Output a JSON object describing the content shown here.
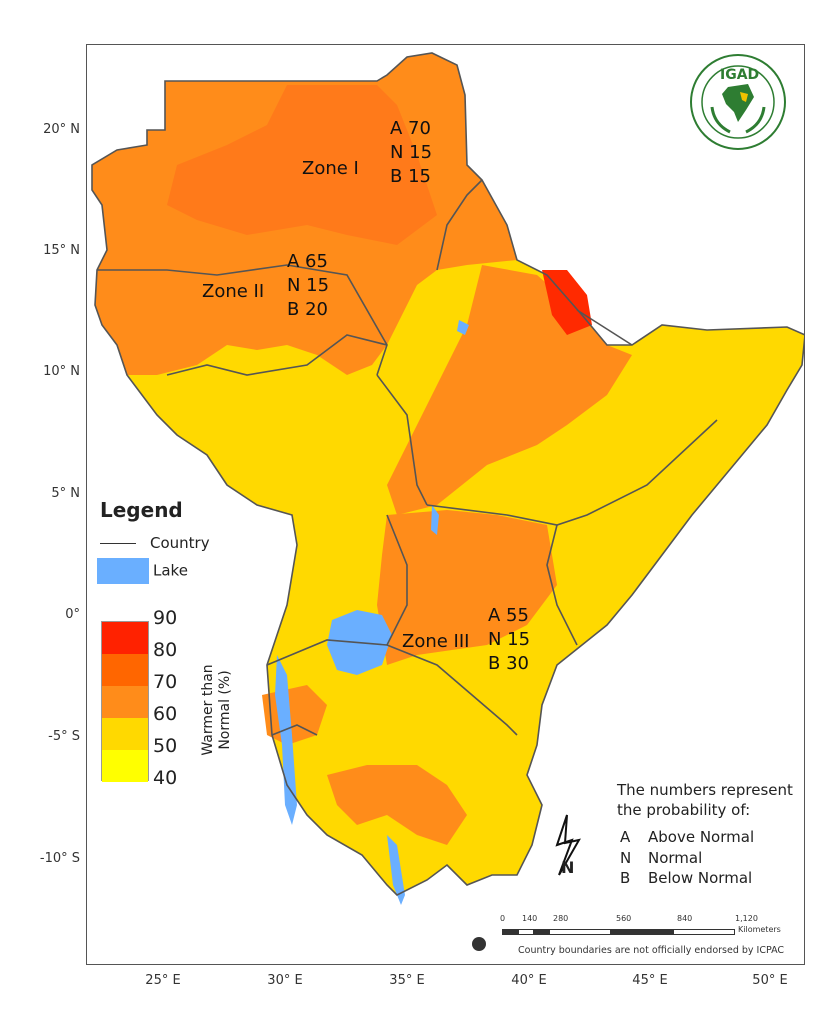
{
  "map": {
    "lat_labels": [
      "20° N",
      "15° N",
      "10° N",
      "5° N",
      "0°",
      "-5° S",
      "-10° S"
    ],
    "lon_labels": [
      "25° E",
      "30° E",
      "35° E",
      "40° E",
      "45° E",
      "50° E"
    ]
  },
  "zones": [
    {
      "name": "Zone I",
      "lines": [
        "A 70",
        "N 15",
        "B 15"
      ]
    },
    {
      "name": "Zone II",
      "lines": [
        "A 65",
        "N 15",
        "B 20"
      ]
    },
    {
      "name": "Zone III",
      "lines": [
        "A 55",
        "N 15",
        "B 30"
      ]
    }
  ],
  "legend": {
    "title": "Legend",
    "country": "Country",
    "lake": "Lake",
    "ramp_labels": [
      "90",
      "80",
      "70",
      "60",
      "50",
      "40"
    ],
    "ramp_colors": [
      "#ff2200",
      "#ff6600",
      "#ff8c1a",
      "#ffd900",
      "#ffff00"
    ],
    "ramp_axis_line1": "Warmer than",
    "ramp_axis_line2": "Normal (%)"
  },
  "explanation": {
    "line1": "The numbers represent",
    "line2": "the probability of:",
    "keys": [
      {
        "letter": "A",
        "label": "Above Normal"
      },
      {
        "letter": "N",
        "label": "Normal"
      },
      {
        "letter": "B",
        "label": "Below Normal"
      }
    ]
  },
  "scale": {
    "ticks": [
      "0",
      "140",
      "280",
      "560",
      "840",
      "1,120"
    ],
    "unit": "Kilometers"
  },
  "credit": "Country boundaries are not officially endorsed by ICPAC",
  "logo_text": "IGAD",
  "north_letter": "N",
  "colors": {
    "lake": "#6aafff",
    "yellow": "#ffd900",
    "orange": "#ff8c1a",
    "dark_orange": "#ff6a10",
    "red": "#ff2a00"
  }
}
